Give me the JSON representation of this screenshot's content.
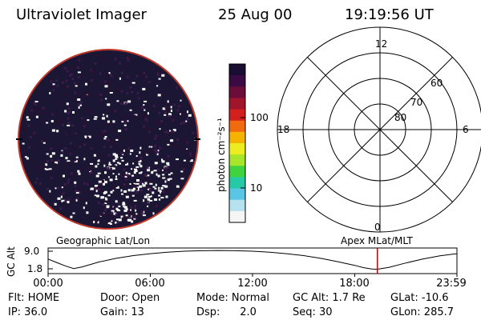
{
  "header": {
    "title": "Ultraviolet Imager",
    "date": "25 Aug 00",
    "time": "19:19:56 UT"
  },
  "colorbar": {
    "unit_label": "photon cm⁻²s⁻¹",
    "tick_labels": [
      "100",
      "10"
    ],
    "colors_top_to_bottom": [
      "#1a0d33",
      "#3b0a45",
      "#6b0d3a",
      "#a0152b",
      "#d41f1f",
      "#f26a10",
      "#f5b200",
      "#ecec20",
      "#a7e52a",
      "#3fd43f",
      "#25c9a6",
      "#59c6e6",
      "#b6e2ef",
      "#f5f5f5"
    ]
  },
  "polar_grid": {
    "mlt_labels": [
      "12",
      "18",
      "6",
      "0"
    ],
    "mlat_labels": [
      "60",
      "70",
      "80"
    ]
  },
  "altitude_plot": {
    "left_title": "Geographic Lat/Lon",
    "right_title": "Apex MLat/MLT",
    "y_axis_label": "GC Alt",
    "y_ticks": [
      "9.0",
      "1.8"
    ],
    "x_ticks": [
      "00:00",
      "06:00",
      "12:00",
      "18:00",
      "23:59"
    ],
    "orbit_altitude_re": [
      {
        "hour": 0.0,
        "alt": 5.8
      },
      {
        "hour": 0.5,
        "alt": 4.4
      },
      {
        "hour": 1.0,
        "alt": 3.0
      },
      {
        "hour": 1.5,
        "alt": 1.9
      },
      {
        "hour": 2.0,
        "alt": 2.6
      },
      {
        "hour": 3.0,
        "alt": 4.6
      },
      {
        "hour": 4.0,
        "alt": 6.1
      },
      {
        "hour": 5.0,
        "alt": 7.2
      },
      {
        "hour": 6.0,
        "alt": 8.0
      },
      {
        "hour": 7.0,
        "alt": 8.6
      },
      {
        "hour": 8.0,
        "alt": 9.0
      },
      {
        "hour": 9.0,
        "alt": 9.2
      },
      {
        "hour": 10.0,
        "alt": 9.3
      },
      {
        "hour": 11.0,
        "alt": 9.2
      },
      {
        "hour": 12.0,
        "alt": 9.0
      },
      {
        "hour": 13.0,
        "alt": 8.6
      },
      {
        "hour": 14.0,
        "alt": 8.0
      },
      {
        "hour": 15.0,
        "alt": 7.2
      },
      {
        "hour": 16.0,
        "alt": 6.1
      },
      {
        "hour": 17.0,
        "alt": 4.7
      },
      {
        "hour": 18.0,
        "alt": 3.2
      },
      {
        "hour": 18.5,
        "alt": 2.3
      },
      {
        "hour": 19.0,
        "alt": 1.7
      },
      {
        "hour": 19.3,
        "alt": 1.6
      },
      {
        "hour": 20.0,
        "alt": 2.4
      },
      {
        "hour": 21.0,
        "alt": 4.2
      },
      {
        "hour": 22.0,
        "alt": 5.8
      },
      {
        "hour": 23.0,
        "alt": 7.1
      },
      {
        "hour": 23.98,
        "alt": 8.0
      }
    ],
    "current_hour": 19.33,
    "marker_color": "#cc0000"
  },
  "status": {
    "flt": "Flt: HOME",
    "ip": "IP: 36.0",
    "door": "Door: Open",
    "gain": "Gain: 13",
    "mode": "Mode: Normal",
    "dsp": "Dsp:      2.0",
    "gc_alt": "GC Alt: 1.7 Re",
    "seq": "Seq: 30",
    "glat": "GLat: -10.6",
    "glon": "GLon: 285.7"
  },
  "image": {
    "background_color": "#1a1633",
    "rim_color": "#c0392b"
  }
}
